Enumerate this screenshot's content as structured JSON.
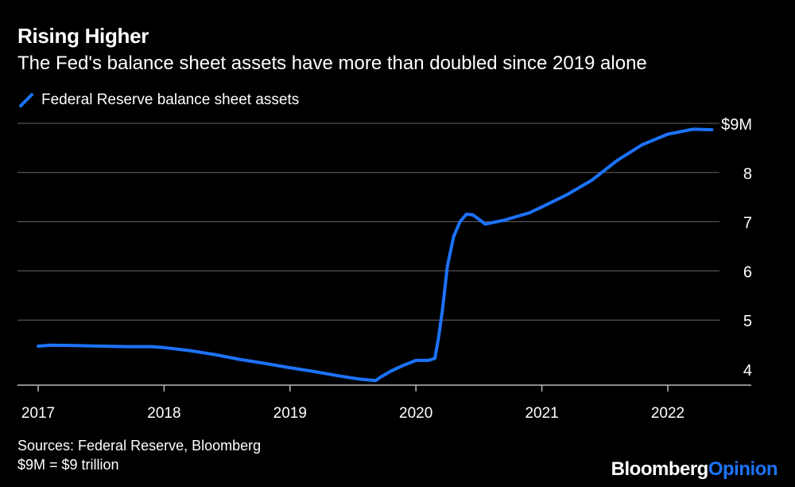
{
  "header": {
    "title": "Rising Higher",
    "subtitle": "The Fed's balance sheet assets have more than doubled since 2019 alone"
  },
  "legend": {
    "label": "Federal Reserve balance sheet assets"
  },
  "footer": {
    "source": "Sources: Federal Reserve, Bloomberg",
    "note": "$9M = $9 trillion",
    "brand_main": "Bloomberg",
    "brand_accent": "Opinion"
  },
  "colors": {
    "background": "#000000",
    "series": "#1c73ff",
    "grid": "#666666"
  },
  "chart_data": {
    "type": "line",
    "title": "Rising Higher",
    "subtitle": "The Fed's balance sheet assets have more than doubled since 2019 alone",
    "xlabel": "",
    "ylabel": "",
    "xlim": [
      2017.0,
      2022.6
    ],
    "ylim": [
      3.7,
      9.0
    ],
    "y_ticks": [
      4,
      5,
      6,
      7,
      8,
      9
    ],
    "y_tick_labels": [
      "4",
      "5",
      "6",
      "7",
      "8",
      "$9M"
    ],
    "x_ticks": [
      2017,
      2018,
      2019,
      2020,
      2021,
      2022
    ],
    "x_tick_labels": [
      "2017",
      "2018",
      "2019",
      "2020",
      "2021",
      "2022"
    ],
    "grid": true,
    "legend_position": "top-left",
    "series": [
      {
        "name": "Federal Reserve balance sheet assets",
        "x": [
          2017.0,
          2017.1,
          2017.3,
          2017.5,
          2017.7,
          2017.9,
          2018.0,
          2018.2,
          2018.4,
          2018.6,
          2018.8,
          2019.0,
          2019.2,
          2019.4,
          2019.55,
          2019.68,
          2019.72,
          2019.8,
          2019.9,
          2020.0,
          2020.1,
          2020.15,
          2020.18,
          2020.21,
          2020.25,
          2020.3,
          2020.35,
          2020.4,
          2020.45,
          2020.5,
          2020.55,
          2020.7,
          2020.9,
          2021.0,
          2021.2,
          2021.4,
          2021.6,
          2021.8,
          2022.0,
          2022.2,
          2022.35
        ],
        "values": [
          4.47,
          4.49,
          4.48,
          4.47,
          4.46,
          4.46,
          4.44,
          4.38,
          4.3,
          4.2,
          4.12,
          4.03,
          3.95,
          3.86,
          3.8,
          3.77,
          3.84,
          3.96,
          4.08,
          4.18,
          4.18,
          4.22,
          4.65,
          5.2,
          6.1,
          6.7,
          7.0,
          7.15,
          7.14,
          7.05,
          6.95,
          7.03,
          7.18,
          7.3,
          7.55,
          7.85,
          8.25,
          8.57,
          8.78,
          8.88,
          8.87
        ]
      }
    ]
  }
}
